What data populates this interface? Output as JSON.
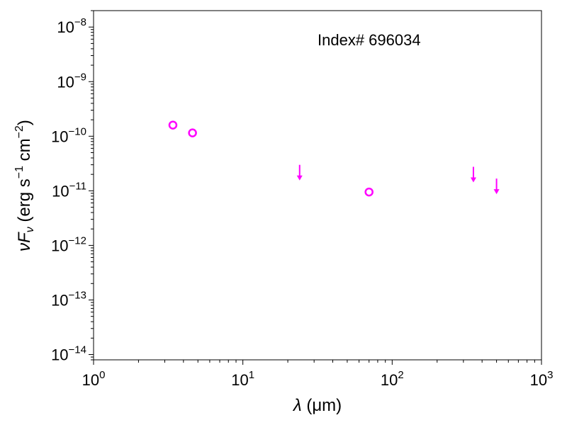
{
  "chart_data": {
    "type": "scatter",
    "annotation": "Index# 696034",
    "xlabel": {
      "symbol": "λ",
      "unit": "(μm)"
    },
    "ylabel": {
      "base": "ν",
      "F": "F",
      "sub": "ν",
      "units_pre": "(erg s",
      "exp1": "−1",
      "units_mid": " cm",
      "exp2": "−2",
      "units_post": ")"
    },
    "xscale": "log",
    "yscale": "log",
    "xlim": [
      1,
      1000
    ],
    "ylim": [
      8e-15,
      2e-08
    ],
    "xticks": [
      {
        "value": 1,
        "base": "10",
        "exp": "0"
      },
      {
        "value": 10,
        "base": "10",
        "exp": "1"
      },
      {
        "value": 100,
        "base": "10",
        "exp": "2"
      },
      {
        "value": 1000,
        "base": "10",
        "exp": "3"
      }
    ],
    "yticks": [
      {
        "value": 1e-14,
        "base": "10",
        "exp": "−14"
      },
      {
        "value": 1e-13,
        "base": "10",
        "exp": "−13"
      },
      {
        "value": 1e-12,
        "base": "10",
        "exp": "−12"
      },
      {
        "value": 1e-11,
        "base": "10",
        "exp": "−11"
      },
      {
        "value": 1e-10,
        "base": "10",
        "exp": "−10"
      },
      {
        "value": 1e-09,
        "base": "10",
        "exp": "−9"
      },
      {
        "value": 1e-08,
        "base": "10",
        "exp": "−8"
      }
    ],
    "color": "#ff00ff",
    "series": [
      {
        "kind": "detections",
        "marker": "open-circle",
        "points": [
          {
            "x": 3.4,
            "y": 1.6e-10
          },
          {
            "x": 4.6,
            "y": 1.15e-10
          },
          {
            "x": 70,
            "y": 9.5e-12
          }
        ]
      },
      {
        "kind": "upper-limits",
        "marker": "down-arrow",
        "points": [
          {
            "x": 24,
            "y": 2.5e-11
          },
          {
            "x": 350,
            "y": 2.3e-11
          },
          {
            "x": 500,
            "y": 1.4e-11
          }
        ]
      }
    ]
  }
}
